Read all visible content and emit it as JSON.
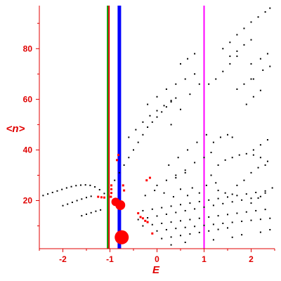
{
  "chart_data": {
    "type": "scatter",
    "xlabel": "E",
    "ylabel": "<n>",
    "xlim": [
      -2.5,
      2.5
    ],
    "ylim": [
      1,
      97
    ],
    "x_ticks": [
      -2,
      -1,
      0,
      1,
      2
    ],
    "x_tick_labels": [
      "-2",
      "-1",
      "0",
      "1",
      "2"
    ],
    "y_ticks": [
      20,
      40,
      60,
      80
    ],
    "y_tick_labels": [
      "20",
      "40",
      "60",
      "80"
    ],
    "grid": false,
    "legend": "none",
    "colors": {
      "axes": "#e00000",
      "black_points": "#000000",
      "red_points": "#ff0000",
      "line_green": "#00a000",
      "line_red": "#e00000",
      "line_blue": "#0000ff",
      "line_magenta": "#ff00ff"
    },
    "vertical_lines": [
      {
        "x": -1.05,
        "color": "#00a000"
      },
      {
        "x": -1.02,
        "color": "#e00000"
      },
      {
        "x": -0.8,
        "color": "#0000ff"
      },
      {
        "x": 1.0,
        "color": "#ff00ff"
      }
    ],
    "series": [
      {
        "marker": "black-dot",
        "points": [
          [
            -2.42,
            22
          ],
          [
            -2.32,
            22.6
          ],
          [
            -2.22,
            23.2
          ],
          [
            -2.12,
            23.8
          ],
          [
            -2.02,
            24.4
          ],
          [
            -1.92,
            25
          ],
          [
            -1.82,
            25.5
          ],
          [
            -1.72,
            25.9
          ],
          [
            -1.62,
            26.1
          ],
          [
            -1.52,
            26.2
          ],
          [
            -1.42,
            26
          ],
          [
            -1.32,
            25.4
          ],
          [
            -1.22,
            24.3
          ],
          [
            -1.12,
            22.8
          ],
          [
            -2.0,
            18
          ],
          [
            -1.9,
            18.6
          ],
          [
            -1.8,
            19.3
          ],
          [
            -1.7,
            20
          ],
          [
            -1.6,
            20.6
          ],
          [
            -1.5,
            21.2
          ],
          [
            -1.4,
            21.7
          ],
          [
            -1.6,
            14
          ],
          [
            -1.5,
            14.6
          ],
          [
            -1.4,
            15.2
          ],
          [
            -1.3,
            15.8
          ],
          [
            -1.2,
            16.3
          ],
          [
            -0.9,
            28
          ],
          [
            -0.8,
            31
          ],
          [
            -0.7,
            34
          ],
          [
            -0.6,
            37
          ],
          [
            -0.5,
            40
          ],
          [
            -0.4,
            43
          ],
          [
            -0.3,
            46
          ],
          [
            -0.2,
            49
          ],
          [
            -0.1,
            51
          ],
          [
            0.0,
            53
          ],
          [
            0.1,
            55
          ],
          [
            0.2,
            57
          ],
          [
            0.3,
            59
          ],
          [
            0.4,
            60.5
          ],
          [
            -0.6,
            45
          ],
          [
            -0.45,
            48
          ],
          [
            -0.3,
            51
          ],
          [
            -0.15,
            53.5
          ],
          [
            0.0,
            55.5
          ],
          [
            0.15,
            57.5
          ],
          [
            0.3,
            59.5
          ],
          [
            -0.2,
            58
          ],
          [
            0.0,
            61
          ],
          [
            0.2,
            64
          ],
          [
            0.4,
            66
          ],
          [
            0.6,
            68
          ],
          [
            0.8,
            70
          ],
          [
            0.5,
            74
          ],
          [
            0.65,
            76
          ],
          [
            0.8,
            78
          ],
          [
            0.3,
            50
          ],
          [
            0.5,
            56
          ],
          [
            0.7,
            62
          ],
          [
            0.9,
            66
          ],
          [
            1.4,
            80
          ],
          [
            1.55,
            82.5
          ],
          [
            1.7,
            85.5
          ],
          [
            1.85,
            88
          ],
          [
            2.0,
            90.5
          ],
          [
            2.15,
            92.5
          ],
          [
            2.3,
            94.5
          ],
          [
            2.4,
            96
          ],
          [
            1.55,
            77
          ],
          [
            1.7,
            79
          ],
          [
            1.85,
            81.5
          ],
          [
            2.0,
            83.5
          ],
          [
            1.1,
            66
          ],
          [
            1.25,
            68
          ],
          [
            1.4,
            71
          ],
          [
            1.55,
            74
          ],
          [
            1.7,
            77
          ],
          [
            1.7,
            64
          ],
          [
            1.85,
            66
          ],
          [
            2.0,
            68
          ],
          [
            2.0,
            74
          ],
          [
            2.2,
            76
          ],
          [
            2.35,
            78
          ],
          [
            2.05,
            68
          ],
          [
            2.25,
            71.5
          ],
          [
            2.4,
            73
          ],
          [
            1.9,
            58
          ],
          [
            2.05,
            61
          ],
          [
            2.2,
            63.5
          ],
          [
            2.05,
            40
          ],
          [
            2.2,
            42
          ],
          [
            2.35,
            44
          ],
          [
            1.2,
            43
          ],
          [
            1.35,
            45
          ],
          [
            1.5,
            46
          ],
          [
            1.6,
            45
          ],
          [
            1.3,
            34
          ],
          [
            1.45,
            36
          ],
          [
            1.6,
            37
          ],
          [
            1.75,
            38
          ],
          [
            1.9,
            38.5
          ],
          [
            2.05,
            38
          ],
          [
            2.2,
            37
          ],
          [
            2.35,
            35.5
          ],
          [
            1.7,
            26
          ],
          [
            1.85,
            28
          ],
          [
            2.0,
            31
          ],
          [
            2.15,
            33
          ],
          [
            2.3,
            34
          ],
          [
            2.0,
            19
          ],
          [
            2.15,
            21
          ],
          [
            2.3,
            23
          ],
          [
            2.45,
            25
          ],
          [
            1.3,
            24
          ],
          [
            1.45,
            23
          ],
          [
            1.6,
            22.5
          ],
          [
            0.4,
            29
          ],
          [
            0.6,
            32
          ],
          [
            0.8,
            35
          ],
          [
            1.0,
            37
          ],
          [
            1.15,
            39
          ],
          [
            0.0,
            26
          ],
          [
            0.2,
            28
          ],
          [
            0.4,
            30
          ],
          [
            0.6,
            31
          ],
          [
            -0.3,
            16
          ],
          [
            -0.1,
            16.6
          ],
          [
            0.1,
            17.2
          ],
          [
            0.3,
            17.8
          ],
          [
            0.5,
            18.4
          ],
          [
            0.7,
            19
          ],
          [
            0.9,
            19.6
          ],
          [
            1.1,
            20.2
          ],
          [
            1.3,
            20.8
          ],
          [
            1.5,
            21.4
          ],
          [
            1.7,
            22
          ],
          [
            1.9,
            22.6
          ],
          [
            2.1,
            23.2
          ],
          [
            2.3,
            23.8
          ],
          [
            -0.4,
            12.5
          ],
          [
            -0.2,
            13.2
          ],
          [
            0.0,
            13.9
          ],
          [
            0.2,
            14.6
          ],
          [
            0.4,
            15.3
          ],
          [
            0.6,
            16
          ],
          [
            0.8,
            16.7
          ],
          [
            1.0,
            17.4
          ],
          [
            1.2,
            18.1
          ],
          [
            1.4,
            18.8
          ],
          [
            1.6,
            19.5
          ],
          [
            1.8,
            20.2
          ],
          [
            2.0,
            20.9
          ],
          [
            2.2,
            21.6
          ],
          [
            -0.3,
            10
          ],
          [
            -0.1,
            10.5
          ],
          [
            0.1,
            11
          ],
          [
            0.3,
            11.5
          ],
          [
            0.5,
            12
          ],
          [
            0.7,
            12.5
          ],
          [
            0.9,
            13
          ],
          [
            1.1,
            13.5
          ],
          [
            1.3,
            14
          ],
          [
            1.5,
            14.5
          ],
          [
            1.7,
            15
          ],
          [
            1.9,
            15.5
          ],
          [
            2.1,
            16
          ],
          [
            2.3,
            16.5
          ],
          [
            0.0,
            8
          ],
          [
            0.2,
            8.5
          ],
          [
            0.4,
            9
          ],
          [
            0.6,
            9.4
          ],
          [
            0.8,
            9.8
          ],
          [
            1.0,
            10.2
          ],
          [
            1.2,
            10.6
          ],
          [
            1.4,
            11
          ],
          [
            1.6,
            11.4
          ],
          [
            1.8,
            11.8
          ],
          [
            2.0,
            12.2
          ],
          [
            2.2,
            12.6
          ],
          [
            2.4,
            13
          ],
          [
            0.1,
            5
          ],
          [
            0.3,
            5.6
          ],
          [
            0.5,
            6.2
          ],
          [
            0.7,
            6.8
          ],
          [
            0.9,
            7.4
          ],
          [
            1.1,
            8
          ],
          [
            1.3,
            8.6
          ],
          [
            1.5,
            9.2
          ],
          [
            0.3,
            2.5
          ],
          [
            0.6,
            3.5
          ],
          [
            1.2,
            4.5
          ],
          [
            1.6,
            5.5
          ],
          [
            1.8,
            6.5
          ],
          [
            2.2,
            7.5
          ],
          [
            2.4,
            8.5
          ],
          [
            0.75,
            25
          ],
          [
            0.9,
            23
          ],
          [
            1.05,
            26
          ],
          [
            1.25,
            27
          ],
          [
            1.15,
            30
          ],
          [
            -0.25,
            22
          ],
          [
            -0.05,
            24
          ],
          [
            0.15,
            23
          ],
          [
            0.35,
            21.5
          ],
          [
            0.5,
            24.5
          ],
          [
            0.65,
            22
          ],
          [
            0.25,
            34
          ],
          [
            0.45,
            37
          ],
          [
            0.65,
            40
          ],
          [
            0.85,
            43
          ],
          [
            1.05,
            46
          ]
        ]
      },
      {
        "marker": "red-dot",
        "points": [
          [
            -0.85,
            36
          ],
          [
            -0.82,
            38
          ],
          [
            -0.97,
            26
          ],
          [
            -0.97,
            24.5
          ],
          [
            -0.97,
            23
          ],
          [
            -0.72,
            26
          ],
          [
            -0.7,
            24
          ],
          [
            -1.25,
            21.5
          ],
          [
            -1.18,
            21.3
          ],
          [
            -1.12,
            21.2
          ],
          [
            -0.98,
            21.5
          ],
          [
            -0.4,
            15
          ],
          [
            -0.35,
            13.5
          ],
          [
            -0.3,
            13
          ],
          [
            -0.25,
            12
          ],
          [
            -0.2,
            11.5
          ],
          [
            -0.1,
            7
          ],
          [
            -0.22,
            28
          ],
          [
            -0.15,
            29
          ]
        ]
      },
      {
        "marker": "red-blob",
        "points": [
          {
            "x": -0.88,
            "y": 19.5,
            "r": 6
          },
          {
            "x": -0.78,
            "y": 18.2,
            "r": 7
          },
          {
            "x": -0.75,
            "y": 5.5,
            "r": 10
          }
        ]
      }
    ]
  }
}
